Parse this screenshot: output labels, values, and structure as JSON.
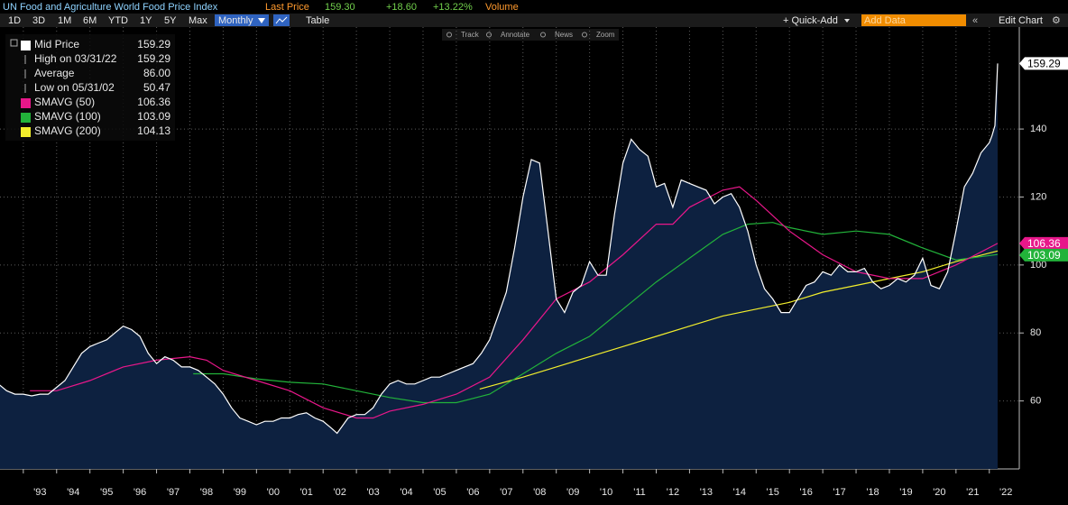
{
  "header": {
    "title": "UN Food and Agriculture World Food Price Index",
    "last_price_label": "Last Price",
    "last_price": "159.30",
    "change": "+18.60",
    "change_pct": "+13.22%",
    "volume": "Volume"
  },
  "toolbar": {
    "ranges": [
      "1D",
      "3D",
      "1M",
      "6M",
      "YTD",
      "1Y",
      "5Y",
      "Max"
    ],
    "frequency": "Monthly",
    "table": "Table",
    "quick_add": "+ Quick-Add",
    "add_data": "Add Data",
    "edit_chart": "Edit Chart"
  },
  "tools": [
    "Track",
    "Annotate",
    "News",
    "Zoom"
  ],
  "chart_data": {
    "type": "line",
    "legend": "top-left",
    "grid": true,
    "xlim": [
      1992.3,
      2022.9
    ],
    "ylim": [
      40,
      170
    ],
    "yticks": [
      60,
      80,
      100,
      120,
      140
    ],
    "xticks": [
      {
        "value": 1993,
        "label": "'93"
      },
      {
        "value": 1994,
        "label": "'94"
      },
      {
        "value": 1995,
        "label": "'95"
      },
      {
        "value": 1996,
        "label": "'96"
      },
      {
        "value": 1997,
        "label": "'97"
      },
      {
        "value": 1998,
        "label": "'98"
      },
      {
        "value": 1999,
        "label": "'99"
      },
      {
        "value": 2000,
        "label": "'00"
      },
      {
        "value": 2001,
        "label": "'01"
      },
      {
        "value": 2002,
        "label": "'02"
      },
      {
        "value": 2003,
        "label": "'03"
      },
      {
        "value": 2004,
        "label": "'04"
      },
      {
        "value": 2005,
        "label": "'05"
      },
      {
        "value": 2006,
        "label": "'06"
      },
      {
        "value": 2007,
        "label": "'07"
      },
      {
        "value": 2008,
        "label": "'08"
      },
      {
        "value": 2009,
        "label": "'09"
      },
      {
        "value": 2010,
        "label": "'10"
      },
      {
        "value": 2011,
        "label": "'11"
      },
      {
        "value": 2012,
        "label": "'12"
      },
      {
        "value": 2013,
        "label": "'13"
      },
      {
        "value": 2014,
        "label": "'14"
      },
      {
        "value": 2015,
        "label": "'15"
      },
      {
        "value": 2016,
        "label": "'16"
      },
      {
        "value": 2017,
        "label": "'17"
      },
      {
        "value": 2018,
        "label": "'18"
      },
      {
        "value": 2019,
        "label": "'19"
      },
      {
        "value": 2020,
        "label": "'20"
      },
      {
        "value": 2021,
        "label": "'21"
      },
      {
        "value": 2022,
        "label": "'22"
      }
    ],
    "stats": [
      {
        "label": "High on 03/31/22",
        "value": 159.29
      },
      {
        "label": "Average",
        "value": 86,
        "value_label": "86.00"
      },
      {
        "label": "Low on 05/31/02",
        "value": 50.47
      }
    ],
    "series": [
      {
        "name": "Mid Price",
        "color": "#ffffff",
        "fill": "#0d2140",
        "x": [
          1992.25,
          1992.5,
          1992.75,
          1993,
          1993.25,
          1993.5,
          1993.75,
          1994,
          1994.25,
          1994.5,
          1994.75,
          1995,
          1995.25,
          1995.5,
          1995.75,
          1996,
          1996.25,
          1996.5,
          1996.75,
          1997,
          1997.25,
          1997.5,
          1997.75,
          1998,
          1998.25,
          1998.5,
          1998.75,
          1999,
          1999.25,
          1999.5,
          1999.75,
          2000,
          2000.25,
          2000.5,
          2000.75,
          2001,
          2001.25,
          2001.5,
          2001.75,
          2002,
          2002.25,
          2002.42,
          2002.75,
          2003,
          2003.25,
          2003.5,
          2003.75,
          2004,
          2004.25,
          2004.5,
          2004.75,
          2005,
          2005.25,
          2005.5,
          2005.75,
          2006,
          2006.25,
          2006.5,
          2006.75,
          2007,
          2007.25,
          2007.5,
          2007.75,
          2008,
          2008.25,
          2008.5,
          2008.75,
          2009,
          2009.25,
          2009.5,
          2009.75,
          2010,
          2010.25,
          2010.5,
          2010.75,
          2011,
          2011.25,
          2011.5,
          2011.75,
          2012,
          2012.25,
          2012.5,
          2012.75,
          2013,
          2013.25,
          2013.5,
          2013.75,
          2014,
          2014.25,
          2014.5,
          2014.75,
          2015,
          2015.25,
          2015.5,
          2015.75,
          2016,
          2016.25,
          2016.5,
          2016.75,
          2017,
          2017.25,
          2017.5,
          2017.75,
          2018,
          2018.25,
          2018.5,
          2018.75,
          2019,
          2019.25,
          2019.5,
          2019.75,
          2020,
          2020.25,
          2020.5,
          2020.75,
          2021,
          2021.25,
          2021.5,
          2021.75,
          2022,
          2022.08,
          2022.17,
          2022.25
        ],
        "values": [
          65,
          63,
          62,
          62,
          61.5,
          62,
          62,
          64,
          66,
          70,
          74,
          76,
          77,
          78,
          80,
          82,
          81,
          79,
          74,
          71,
          73,
          72,
          70,
          70,
          69,
          67,
          65,
          62,
          58,
          55,
          54,
          53,
          54,
          54,
          55,
          55,
          56,
          56.5,
          55,
          54,
          52,
          50.47,
          55,
          56,
          56,
          58,
          62,
          65,
          66,
          65,
          65,
          66,
          67,
          67,
          68,
          69,
          70,
          71,
          74,
          78,
          85,
          92,
          105,
          120,
          131,
          130,
          110,
          90,
          86,
          92,
          94,
          101,
          97,
          97,
          115,
          130,
          137,
          134,
          132,
          123,
          124,
          117,
          125,
          124,
          123,
          122,
          118,
          120,
          121,
          117,
          110,
          100,
          93,
          90,
          86,
          86,
          90,
          94,
          95,
          98,
          97,
          100,
          98,
          98,
          99,
          95,
          93,
          94,
          96,
          95,
          97,
          102,
          94,
          93,
          98,
          110,
          123,
          127,
          133,
          136,
          138,
          141,
          159.29
        ]
      },
      {
        "name": "SMAVG (50)",
        "color": "#e8178a",
        "x": [
          1993.2,
          1994,
          1995,
          1996,
          1997,
          1998,
          1998.5,
          1999,
          2000,
          2001,
          2002,
          2003,
          2003.5,
          2004,
          2005,
          2006,
          2007,
          2008,
          2009,
          2010,
          2011,
          2012,
          2012.5,
          2013,
          2014,
          2014.5,
          2015,
          2016,
          2017,
          2018,
          2019,
          2020,
          2021,
          2022.25
        ],
        "values": [
          63,
          63,
          66,
          70,
          72,
          73,
          72,
          69,
          66,
          63,
          58,
          55,
          55,
          57,
          59,
          62,
          67,
          78,
          90,
          95,
          103,
          112,
          112,
          117,
          122,
          123,
          119,
          110,
          103,
          98,
          96,
          96,
          100,
          106.36
        ]
      },
      {
        "name": "SMAVG (100)",
        "color": "#22b33a",
        "x": [
          1998.1,
          1999,
          2000,
          2001,
          2002,
          2003,
          2004,
          2005,
          2006,
          2007,
          2008,
          2009,
          2010,
          2011,
          2012,
          2013,
          2014,
          2014.75,
          2015.5,
          2016,
          2017,
          2018,
          2019,
          2020,
          2021,
          2022.25
        ],
        "values": [
          68,
          68,
          66.5,
          65.5,
          65,
          63,
          61,
          59.5,
          59.5,
          62,
          68,
          74,
          79,
          87,
          95,
          102,
          109,
          112,
          112.5,
          111,
          109,
          110,
          109,
          105,
          101.5,
          103.09
        ]
      },
      {
        "name": "SMAVG (200)",
        "color": "#f2ee2c",
        "x": [
          2006.7,
          2008,
          2009,
          2010,
          2011,
          2012,
          2013,
          2014,
          2015,
          2016,
          2017,
          2018,
          2019,
          2020,
          2021,
          2022.25
        ],
        "values": [
          63.5,
          67,
          70,
          73,
          76,
          79,
          82,
          85,
          87,
          89,
          92,
          94,
          96,
          98,
          101,
          104.13
        ]
      }
    ]
  }
}
